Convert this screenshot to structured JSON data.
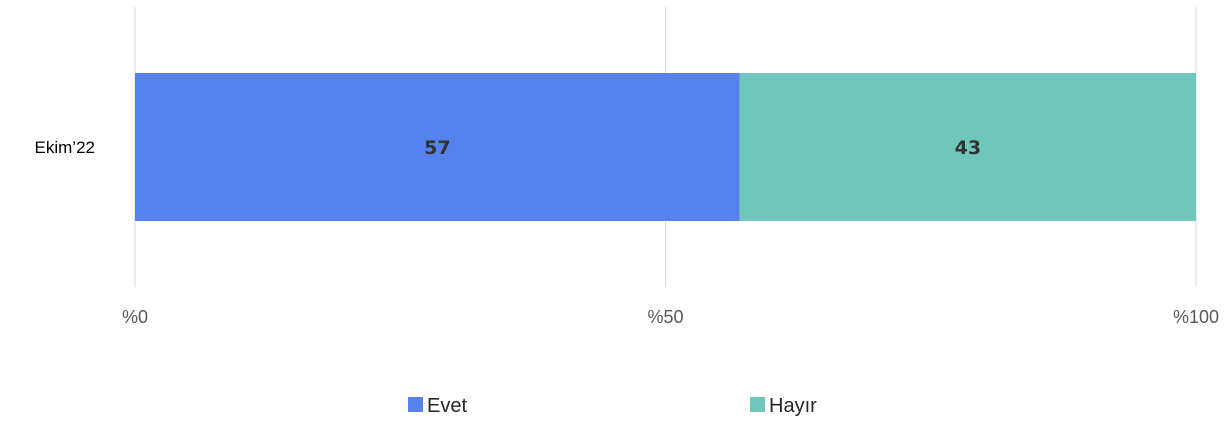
{
  "chart_data": {
    "type": "bar",
    "orientation": "horizontal",
    "stacked": true,
    "percent_stacked": true,
    "categories": [
      "Ekim’22"
    ],
    "series": [
      {
        "name": "Evet",
        "values": [
          57
        ],
        "color": "#5682EE"
      },
      {
        "name": "Hayır",
        "values": [
          43
        ],
        "color": "#6FC6BA"
      }
    ],
    "xlim": [
      0,
      100
    ],
    "x_ticks": [
      0,
      50,
      100
    ],
    "x_tick_labels": [
      "%0",
      "%50",
      "%100"
    ],
    "grid": true,
    "legend": "bottom"
  }
}
